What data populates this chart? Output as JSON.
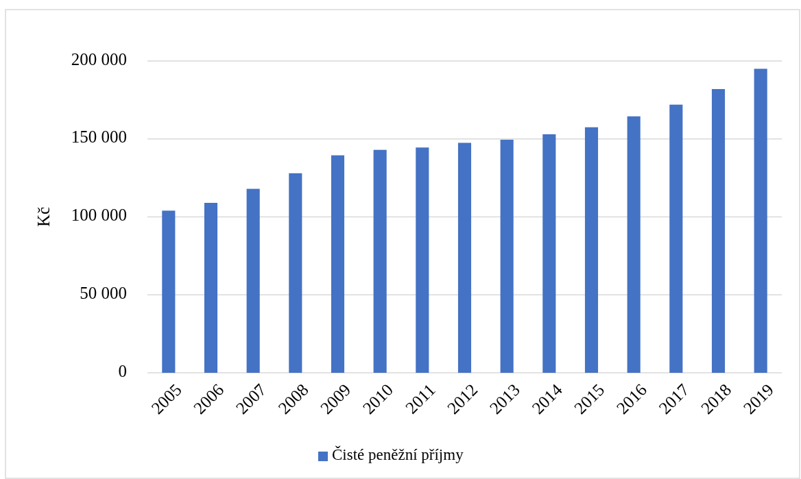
{
  "chart_data": {
    "type": "bar",
    "ylabel": "Kč",
    "categories": [
      "2005",
      "2006",
      "2007",
      "2008",
      "2009",
      "2010",
      "2011",
      "2012",
      "2013",
      "2014",
      "2015",
      "2016",
      "2017",
      "2018",
      "2019"
    ],
    "series": [
      {
        "name": "Čisté peněžní příjmy",
        "color": "#4472c4",
        "values": [
          104000,
          109000,
          118000,
          128000,
          139500,
          143000,
          144500,
          147500,
          149500,
          153000,
          157500,
          164500,
          172000,
          182000,
          195000
        ]
      }
    ],
    "ylim": [
      0,
      200000
    ],
    "yticks": [
      {
        "value": 0,
        "label": "0"
      },
      {
        "value": 50000,
        "label": "50 000"
      },
      {
        "value": 100000,
        "label": "100 000"
      },
      {
        "value": 150000,
        "label": "150 000"
      },
      {
        "value": 200000,
        "label": "200 000"
      }
    ],
    "grid": "y",
    "legend": "bottom"
  }
}
